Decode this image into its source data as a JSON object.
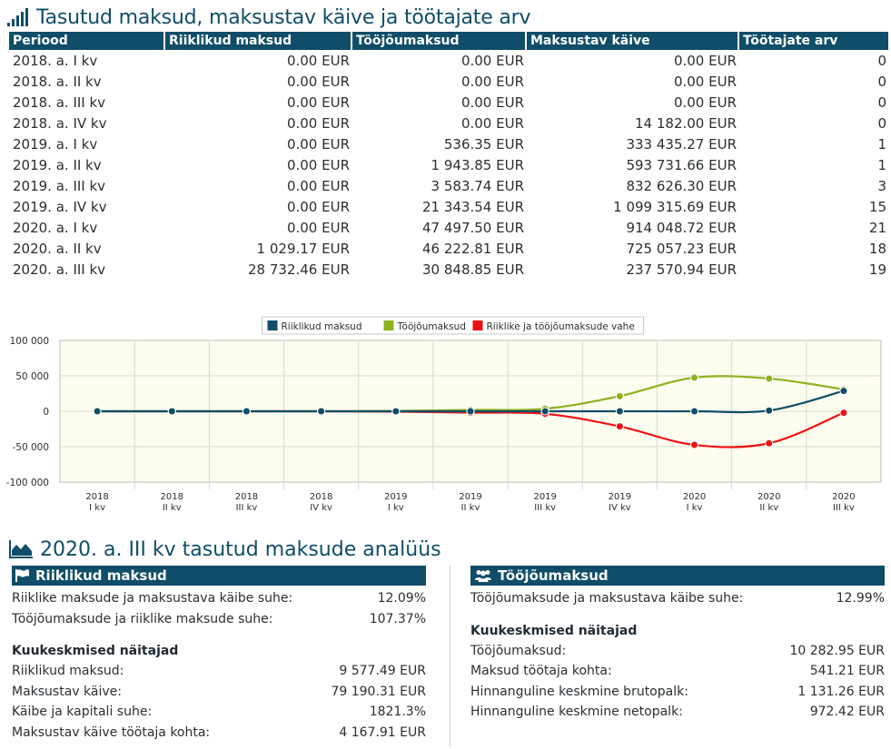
{
  "section1": {
    "title": "Tasutud maksud, maksustav käive ja töötajate arv",
    "icon": "signal-bars-icon"
  },
  "table": {
    "headers": [
      "Periood",
      "Riiklikud maksud",
      "Tööjõumaksud",
      "Maksustav käive",
      "Töötajate arv"
    ],
    "rows": [
      [
        "2018. a. I kv",
        "0.00 EUR",
        "0.00 EUR",
        "0.00 EUR",
        "0"
      ],
      [
        "2018. a. II kv",
        "0.00 EUR",
        "0.00 EUR",
        "0.00 EUR",
        "0"
      ],
      [
        "2018. a. III kv",
        "0.00 EUR",
        "0.00 EUR",
        "0.00 EUR",
        "0"
      ],
      [
        "2018. a. IV kv",
        "0.00 EUR",
        "0.00 EUR",
        "14 182.00 EUR",
        "0"
      ],
      [
        "2019. a. I kv",
        "0.00 EUR",
        "536.35 EUR",
        "333 435.27 EUR",
        "1"
      ],
      [
        "2019. a. II kv",
        "0.00 EUR",
        "1 943.85 EUR",
        "593 731.66 EUR",
        "1"
      ],
      [
        "2019. a. III kv",
        "0.00 EUR",
        "3 583.74 EUR",
        "832 626.30 EUR",
        "3"
      ],
      [
        "2019. a. IV kv",
        "0.00 EUR",
        "21 343.54 EUR",
        "1 099 315.69 EUR",
        "15"
      ],
      [
        "2020. a. I kv",
        "0.00 EUR",
        "47 497.50 EUR",
        "914 048.72 EUR",
        "21"
      ],
      [
        "2020. a. II kv",
        "1 029.17 EUR",
        "46 222.81 EUR",
        "725 057.23 EUR",
        "18"
      ],
      [
        "2020. a. III kv",
        "28 732.46 EUR",
        "30 848.85 EUR",
        "237 570.94 EUR",
        "19"
      ]
    ]
  },
  "chart_data": {
    "type": "line",
    "categories": [
      [
        "2018",
        "I kv"
      ],
      [
        "2018",
        "II kv"
      ],
      [
        "2018",
        "III kv"
      ],
      [
        "2018",
        "IV kv"
      ],
      [
        "2019",
        "I kv"
      ],
      [
        "2019",
        "II kv"
      ],
      [
        "2019",
        "III kv"
      ],
      [
        "2019",
        "IV kv"
      ],
      [
        "2020",
        "I kv"
      ],
      [
        "2020",
        "II kv"
      ],
      [
        "2020",
        "III kv"
      ]
    ],
    "series": [
      {
        "name": "Riiklikud maksud",
        "color": "#0f4d68",
        "values": [
          0,
          0,
          0,
          0,
          0,
          0,
          0,
          0,
          0,
          1029.17,
          28732.46
        ]
      },
      {
        "name": "Tööjõumaksud",
        "color": "#8db21e",
        "values": [
          0,
          0,
          0,
          0,
          536.35,
          1943.85,
          3583.74,
          21343.54,
          47497.5,
          46222.81,
          30848.85
        ]
      },
      {
        "name": "Riiklike ja tööjõumaksude vahe",
        "color": "#ee1111",
        "values": [
          0,
          0,
          0,
          0,
          -536.35,
          -1943.85,
          -3583.74,
          -21343.54,
          -47497.5,
          -45193.64,
          -2116.39
        ]
      }
    ],
    "yticks": [
      "100 000",
      "50 000",
      "0",
      "-50 000",
      "-100 000"
    ],
    "ylim": [
      -100000,
      100000
    ],
    "legend": "top-center",
    "grid": true
  },
  "section2": {
    "title": "2020. a. III kv tasutud maksude analüüs",
    "icon": "area-chart-icon"
  },
  "left_panel": {
    "title": "Riiklikud maksud",
    "icon": "flag-icon",
    "rows": [
      {
        "label": "Riiklike maksude ja maksustava käibe suhe:",
        "value": "12.09%"
      },
      {
        "label": "Tööjõumaksude ja riiklike maksude suhe:",
        "value": "107.37%"
      }
    ],
    "subtitle": "Kuukeskmised näitajad",
    "sub_rows": [
      {
        "label": "Riiklikud maksud:",
        "value": "9 577.49 EUR"
      },
      {
        "label": "Maksustav käive:",
        "value": "79 190.31 EUR"
      },
      {
        "label": "Käibe ja kapitali suhe:",
        "value": "1821.3%"
      },
      {
        "label": "Maksustav käive töötaja kohta:",
        "value": "4 167.91 EUR"
      }
    ]
  },
  "right_panel": {
    "title": "Tööjõumaksud",
    "icon": "users-icon",
    "rows": [
      {
        "label": "Tööjõumaksude ja maksustava käibe suhe:",
        "value": "12.99%"
      }
    ],
    "subtitle": "Kuukeskmised näitajad",
    "sub_rows": [
      {
        "label": "Tööjõumaksud:",
        "value": "10 282.95 EUR"
      },
      {
        "label": "Maksud töötaja kohta:",
        "value": "541.21 EUR"
      },
      {
        "label": "Hinnanguline keskmine brutopalk:",
        "value": "1 131.26 EUR"
      },
      {
        "label": "Hinnanguline keskmine netopalk:",
        "value": "972.42 EUR"
      }
    ]
  }
}
